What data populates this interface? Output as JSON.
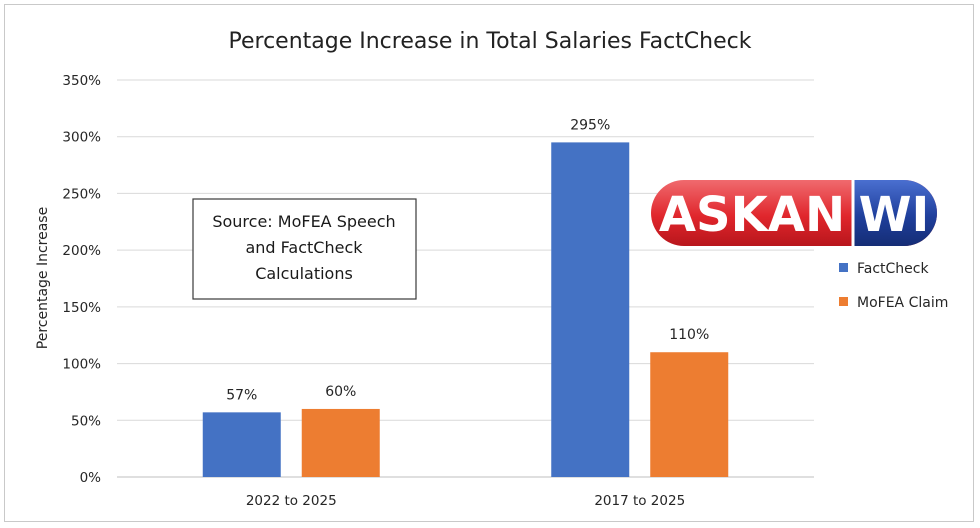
{
  "chart_data": {
    "type": "bar",
    "title": "Percentage Increase in Total Salaries FactCheck",
    "xlabel": "",
    "ylabel": "Percentage Increase",
    "categories": [
      "2022 to 2025",
      "2017 to 2025"
    ],
    "series": [
      {
        "name": "FactCheck",
        "values": [
          57,
          295
        ],
        "labels": [
          "57%",
          "295%"
        ],
        "color": "#4472c4"
      },
      {
        "name": "MoFEA Claim",
        "values": [
          60,
          110
        ],
        "labels": [
          "60%",
          "110%"
        ],
        "color": "#ed7d31"
      }
    ],
    "ylim": [
      0,
      350
    ],
    "yticks": [
      {
        "value": 0,
        "label": "0%"
      },
      {
        "value": 50,
        "label": "50%"
      },
      {
        "value": 100,
        "label": "100%"
      },
      {
        "value": 150,
        "label": "150%"
      },
      {
        "value": 200,
        "label": "200%"
      },
      {
        "value": 250,
        "label": "250%"
      },
      {
        "value": 300,
        "label": "300%"
      },
      {
        "value": 350,
        "label": "350%"
      }
    ],
    "grid": true,
    "legend_position": "right"
  },
  "annotation": {
    "lines": [
      "Source: MoFEA Speech",
      "and FactCheck",
      "Calculations"
    ]
  },
  "logo": {
    "part1": "ASKAN",
    "part2": "WI",
    "red": "#e0262c",
    "blue": "#1f3f9c"
  }
}
